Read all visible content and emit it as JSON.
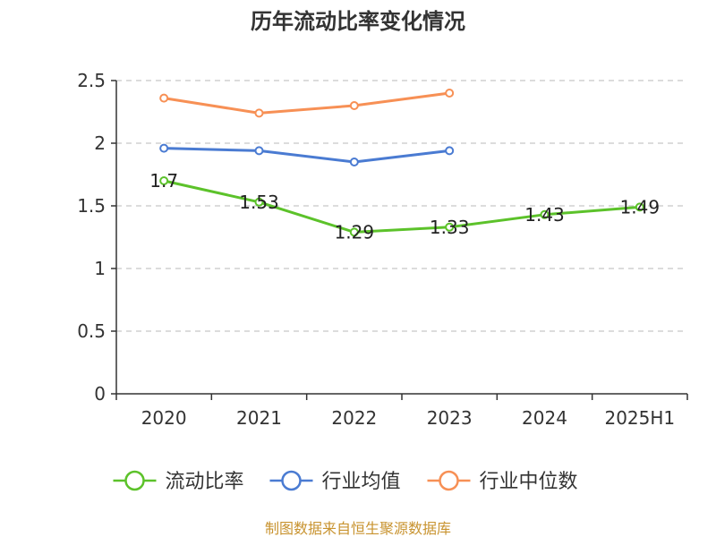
{
  "chart_data": {
    "type": "line",
    "title": "历年流动比率变化情况",
    "categories": [
      "2020",
      "2021",
      "2022",
      "2023",
      "2024",
      "2025H1"
    ],
    "ylim": [
      0,
      2.5
    ],
    "y_ticks": [
      "0",
      "0.5",
      "1",
      "1.5",
      "2",
      "2.5"
    ],
    "grid": true,
    "legend_position": "bottom",
    "series": [
      {
        "name": "流动比率",
        "color": "#5cc22a",
        "values": [
          1.7,
          1.53,
          1.29,
          1.33,
          1.43,
          1.49
        ],
        "labels": [
          "1.7",
          "1.53",
          "1.29",
          "1.33",
          "1.43",
          "1.49"
        ],
        "show_labels": true
      },
      {
        "name": "行业均值",
        "color": "#4a7bd2",
        "values": [
          1.96,
          1.94,
          1.85,
          1.94,
          null,
          null
        ],
        "show_labels": false
      },
      {
        "name": "行业中位数",
        "color": "#f79055",
        "values": [
          2.36,
          2.24,
          2.3,
          2.4,
          null,
          null
        ],
        "show_labels": false
      }
    ],
    "source": "制图数据来自恒生聚源数据库"
  }
}
